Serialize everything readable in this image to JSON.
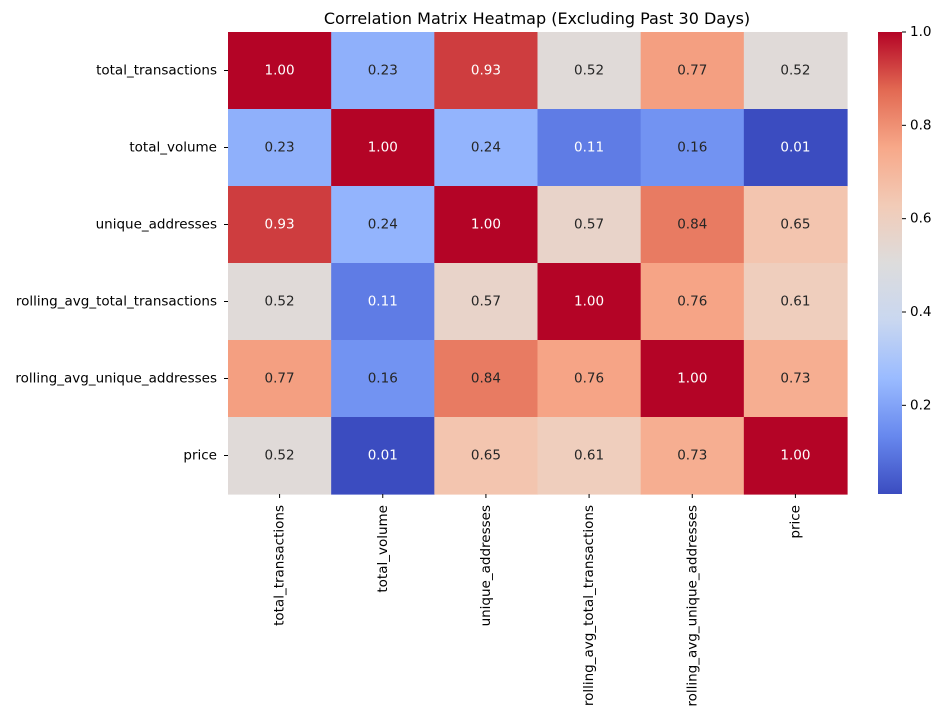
{
  "chart_data": {
    "type": "heatmap",
    "title": "Correlation Matrix Heatmap (Excluding Past 30 Days)",
    "xlabel": "",
    "ylabel": "",
    "rows": [
      "total_transactions",
      "total_volume",
      "unique_addresses",
      "rolling_avg_total_transactions",
      "rolling_avg_unique_addresses",
      "price"
    ],
    "columns": [
      "total_transactions",
      "total_volume",
      "unique_addresses",
      "rolling_avg_total_transactions",
      "rolling_avg_unique_addresses",
      "price"
    ],
    "values": [
      [
        1.0,
        0.23,
        0.93,
        0.52,
        0.77,
        0.52
      ],
      [
        0.23,
        1.0,
        0.24,
        0.11,
        0.16,
        0.01
      ],
      [
        0.93,
        0.24,
        1.0,
        0.57,
        0.84,
        0.65
      ],
      [
        0.52,
        0.11,
        0.57,
        1.0,
        0.76,
        0.61
      ],
      [
        0.77,
        0.16,
        0.84,
        0.76,
        1.0,
        0.73
      ],
      [
        0.52,
        0.01,
        0.65,
        0.61,
        0.73,
        1.0
      ]
    ],
    "cell_labels": [
      [
        "1.00",
        "0.23",
        "0.93",
        "0.52",
        "0.77",
        "0.52"
      ],
      [
        "0.23",
        "1.00",
        "0.24",
        "0.11",
        "0.16",
        "0.01"
      ],
      [
        "0.93",
        "0.24",
        "1.00",
        "0.57",
        "0.84",
        "0.65"
      ],
      [
        "0.52",
        "0.11",
        "0.57",
        "1.00",
        "0.76",
        "0.61"
      ],
      [
        "0.77",
        "0.16",
        "0.84",
        "0.76",
        "1.00",
        "0.73"
      ],
      [
        "0.52",
        "0.01",
        "0.65",
        "0.61",
        "0.73",
        "1.00"
      ]
    ],
    "colormap": "coolwarm",
    "colormap_stops": [
      "#3b4cc0",
      "#6788ee",
      "#9abbff",
      "#c9d7f0",
      "#dddcdc",
      "#f2cbb7",
      "#f7a889",
      "#e26952",
      "#b40426"
    ],
    "color_range": [
      0.01,
      1.0
    ],
    "colorbar": {
      "ticks": [
        0.2,
        0.4,
        0.6,
        0.8,
        1.0
      ],
      "tick_labels": [
        "0.2",
        "0.4",
        "0.6",
        "0.8",
        "1.0"
      ]
    },
    "annotation_colors": {
      "light": "#ffffff",
      "dark": "#262626"
    },
    "grid": false,
    "legend": "colorbar-right"
  }
}
